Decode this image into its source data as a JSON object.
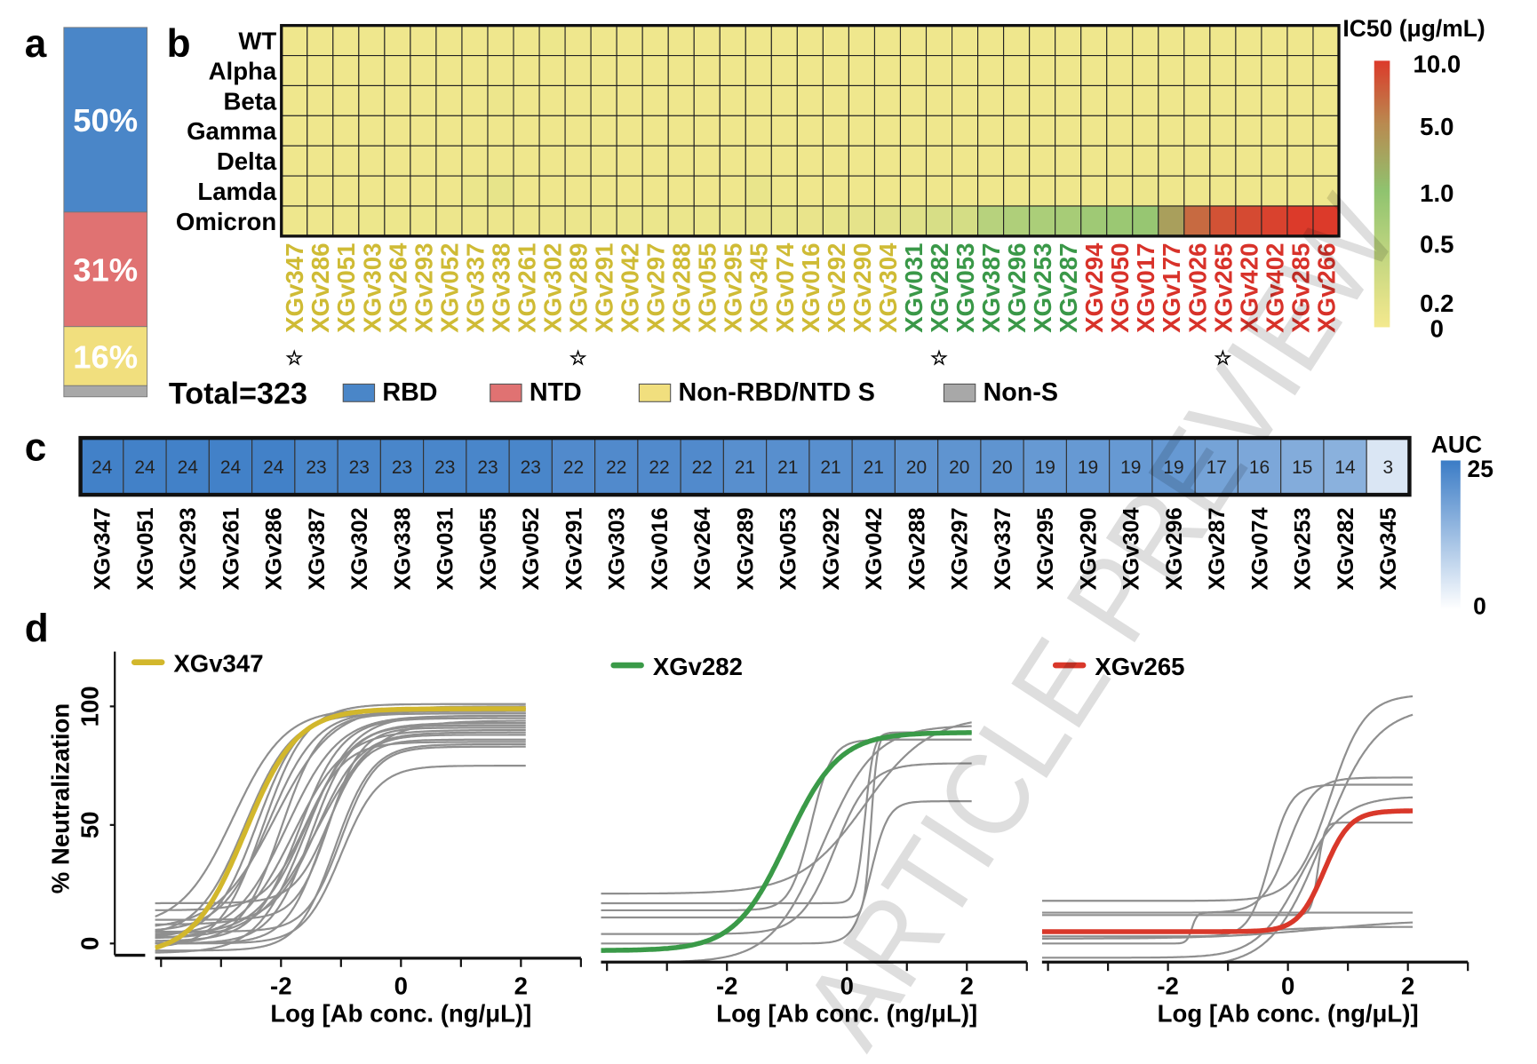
{
  "panel_letters": {
    "a": "a",
    "b": "b",
    "c": "c",
    "d": "d"
  },
  "watermark": "ARTICLE PREVIEW",
  "chart_data": [
    {
      "panel": "a",
      "type": "bar",
      "stacked": true,
      "segments": [
        {
          "category": "RBD",
          "value": 50,
          "label": "50%",
          "color": "#4a86c8"
        },
        {
          "category": "NTD",
          "value": 31,
          "label": "31%",
          "color": "#e07272"
        },
        {
          "category": "Non-RBD/NTD S",
          "value": 16,
          "label": "16%",
          "color": "#f1df7e"
        },
        {
          "category": "Non-S",
          "value": 3,
          "label": "",
          "color": "#a8a8a8"
        }
      ],
      "total_label": "Total=323",
      "legend": [
        {
          "label": "RBD",
          "color": "#4a86c8"
        },
        {
          "label": "NTD",
          "color": "#e07272"
        },
        {
          "label": "Non-RBD/NTD S",
          "color": "#f1df7e"
        },
        {
          "label": "Non-S",
          "color": "#a8a8a8"
        }
      ]
    },
    {
      "panel": "b",
      "type": "heatmap",
      "rows": [
        "WT",
        "Alpha",
        "Beta",
        "Gamma",
        "Delta",
        "Lamda",
        "Omicron"
      ],
      "column_groups": [
        {
          "color": "#cfbb35",
          "columns": [
            "XGv347",
            "XGv286",
            "XGv051",
            "XGv303",
            "XGv264",
            "XGv293",
            "XGv052",
            "XGv337",
            "XGv338",
            "XGv261",
            "XGv302",
            "XGv289",
            "XGv291",
            "XGv042",
            "XGv297",
            "XGv288",
            "XGv055",
            "XGv295",
            "XGv345",
            "XGv074",
            "XGv016",
            "XGv292",
            "XGv290",
            "XGv304"
          ]
        },
        {
          "color": "#3a9848",
          "columns": [
            "XGv031",
            "XGv282",
            "XGv053",
            "XGv387",
            "XGv296",
            "XGv253",
            "XGv287"
          ]
        },
        {
          "color": "#d8322a",
          "columns": [
            "XGv294",
            "XGv050",
            "XGv017",
            "XGv177",
            "XGv026",
            "XGv265",
            "XGv420",
            "XGv402",
            "XGv285",
            "XGv266"
          ]
        }
      ],
      "starred_columns": [
        "XGv347",
        "XGv289",
        "XGv282",
        "XGv265"
      ],
      "star_glyph": "☆",
      "values": [
        [
          0.05,
          0.05,
          0.05,
          0.05,
          0.05,
          0.05,
          0.05,
          0.05,
          0.05,
          0.05,
          0.07,
          0.05,
          0.05,
          0.05,
          0.05,
          0.05,
          0.05,
          0.05,
          0.05,
          0.05,
          0.05,
          0.05,
          0.05,
          0.05,
          0.05,
          0.05,
          0.05,
          0.05,
          0.05,
          0.05,
          0.05,
          0.05,
          0.05,
          0.05,
          0.05,
          0.05,
          0.05,
          0.05,
          0.05,
          0.05,
          0.05
        ],
        [
          0.05,
          0.05,
          0.05,
          0.05,
          0.05,
          0.05,
          0.05,
          0.05,
          0.05,
          0.05,
          0.05,
          0.05,
          0.05,
          0.05,
          0.05,
          0.05,
          0.05,
          0.05,
          0.05,
          0.05,
          0.05,
          0.05,
          0.05,
          0.05,
          0.05,
          0.05,
          0.05,
          0.05,
          0.05,
          0.05,
          0.05,
          0.05,
          0.05,
          0.05,
          0.05,
          0.05,
          0.05,
          0.05,
          0.05,
          0.05,
          0.05
        ],
        [
          0.05,
          0.05,
          0.05,
          0.05,
          0.05,
          0.05,
          0.05,
          0.05,
          0.08,
          0.05,
          0.05,
          0.05,
          0.05,
          0.05,
          0.05,
          0.05,
          0.05,
          0.05,
          0.05,
          0.05,
          0.05,
          0.05,
          0.05,
          0.05,
          0.05,
          0.05,
          0.05,
          0.05,
          0.05,
          0.05,
          0.05,
          0.05,
          0.05,
          0.05,
          0.05,
          0.05,
          0.05,
          0.05,
          0.05,
          0.05,
          0.05
        ],
        [
          0.05,
          0.05,
          0.05,
          0.05,
          0.05,
          0.05,
          0.05,
          0.05,
          0.05,
          0.05,
          0.05,
          0.05,
          0.05,
          0.05,
          0.05,
          0.05,
          0.05,
          0.05,
          0.05,
          0.05,
          0.05,
          0.05,
          0.05,
          0.05,
          0.05,
          0.05,
          0.05,
          0.05,
          0.05,
          0.05,
          0.05,
          0.05,
          0.05,
          0.05,
          0.05,
          0.05,
          0.05,
          0.05,
          0.05,
          0.05,
          0.05
        ],
        [
          0.05,
          0.05,
          0.05,
          0.05,
          0.05,
          0.05,
          0.05,
          0.05,
          0.05,
          0.05,
          0.05,
          0.05,
          0.05,
          0.05,
          0.05,
          0.05,
          0.05,
          0.05,
          0.05,
          0.05,
          0.05,
          0.05,
          0.05,
          0.05,
          0.05,
          0.05,
          0.05,
          0.05,
          0.05,
          0.05,
          0.05,
          0.05,
          0.05,
          0.05,
          0.05,
          0.05,
          0.05,
          0.05,
          0.05,
          0.05,
          0.05
        ],
        [
          0.05,
          0.05,
          0.05,
          0.05,
          0.05,
          0.05,
          0.05,
          0.1,
          0.15,
          0.05,
          0.05,
          0.05,
          0.05,
          0.05,
          0.05,
          0.05,
          0.05,
          0.05,
          0.12,
          0.06,
          0.05,
          0.05,
          0.05,
          0.05,
          0.05,
          0.05,
          0.05,
          0.05,
          0.05,
          0.05,
          0.05,
          0.05,
          0.05,
          0.08,
          0.05,
          0.05,
          0.05,
          0.05,
          0.05,
          0.05,
          0.05
        ],
        [
          0.06,
          0.06,
          0.06,
          0.07,
          0.07,
          0.07,
          0.08,
          0.08,
          0.08,
          0.08,
          0.08,
          0.09,
          0.09,
          0.1,
          0.1,
          0.1,
          0.1,
          0.1,
          0.11,
          0.12,
          0.13,
          0.15,
          0.18,
          0.2,
          0.22,
          0.28,
          0.3,
          0.5,
          0.6,
          0.65,
          0.7,
          0.8,
          0.85,
          0.9,
          3.5,
          7.0,
          8.5,
          9.0,
          9.5,
          10.0,
          10.0
        ]
      ],
      "colorbar": {
        "title": "IC50 (μg/mL)",
        "ticks": [
          "10.0",
          "5.0",
          "1.0",
          "0.5",
          "0.2",
          "0"
        ],
        "stops": [
          {
            "value": 0,
            "color": "#f3e98e"
          },
          {
            "value": 0.2,
            "color": "#e3e289"
          },
          {
            "value": 0.5,
            "color": "#b7d27d"
          },
          {
            "value": 1.0,
            "color": "#8fc36f"
          },
          {
            "value": 5.0,
            "color": "#b98a50"
          },
          {
            "value": 10.0,
            "color": "#dc3a2a"
          }
        ]
      }
    },
    {
      "panel": "c",
      "type": "heatmap",
      "categories": [
        "XGv347",
        "XGv051",
        "XGv293",
        "XGv261",
        "XGv286",
        "XGv387",
        "XGv302",
        "XGv338",
        "XGv031",
        "XGv055",
        "XGv052",
        "XGv291",
        "XGv303",
        "XGv016",
        "XGv264",
        "XGv289",
        "XGv053",
        "XGv292",
        "XGv042",
        "XGv288",
        "XGv297",
        "XGv337",
        "XGv295",
        "XGv290",
        "XGv304",
        "XGv296",
        "XGv287",
        "XGv074",
        "XGv253",
        "XGv282",
        "XGv345"
      ],
      "values": [
        24,
        24,
        24,
        24,
        24,
        23,
        23,
        23,
        23,
        23,
        23,
        22,
        22,
        22,
        22,
        21,
        21,
        21,
        21,
        20,
        20,
        20,
        19,
        19,
        19,
        19,
        17,
        16,
        15,
        14,
        3
      ],
      "colorbar": {
        "title": "AUC",
        "max_label": "25",
        "min_label": "0",
        "range": [
          0,
          25
        ],
        "color_low": "#ffffff",
        "color_high": "#3b7cc6"
      }
    },
    {
      "panel": "d",
      "type": "line",
      "ylabel": "% Neutralization",
      "xlabel": "Log [Ab conc. (ng/μL)]",
      "xticks": [
        "-2",
        "0",
        "2"
      ],
      "yticks": [
        "0",
        "50",
        "100"
      ],
      "ylim": [
        -8,
        125
      ],
      "xlim": [
        -4.1,
        3
      ],
      "model": "bottom + (top - bottom) / (1 + 10^((logIC50 - x) * hill))",
      "curve_color_other": "#8f8f8f",
      "subplots": [
        {
          "name": "XGv347",
          "color": "#d2b72c",
          "highlight": {
            "bottom": -5,
            "top": 99,
            "logIC50": -2.6,
            "hill": 1.0
          },
          "others": [
            [
              2,
              99,
              -2.4,
              1.2
            ],
            [
              5,
              98,
              -2.2,
              1.1
            ],
            [
              0,
              97,
              -2.0,
              1.3
            ],
            [
              3,
              96,
              -1.9,
              1.0
            ],
            [
              6,
              100,
              -2.1,
              0.9
            ],
            [
              1,
              95,
              -1.7,
              1.2
            ],
            [
              4,
              93,
              -1.6,
              1.1
            ],
            [
              0,
              92,
              -1.5,
              1.3
            ],
            [
              2,
              90,
              -1.8,
              1.0
            ],
            [
              8,
              89,
              -1.4,
              1.2
            ],
            [
              0,
              88,
              -1.3,
              1.4
            ],
            [
              17,
              86,
              -1.2,
              1.5
            ],
            [
              14,
              85,
              -1.6,
              1.3
            ],
            [
              -3,
              84,
              -1.1,
              1.4
            ],
            [
              5,
              83,
              -1.0,
              1.5
            ],
            [
              0,
              75,
              -1.0,
              1.4
            ],
            [
              3,
              97,
              -2.6,
              1.1
            ],
            [
              7,
              99,
              -2.8,
              1.0
            ],
            [
              -2,
              101,
              -2.3,
              1.2
            ],
            [
              2,
              94,
              -1.4,
              0.9
            ],
            [
              10,
              91,
              -1.2,
              1.6
            ],
            [
              -4,
              96,
              -1.6,
              1.1
            ]
          ]
        },
        {
          "name": "XGv282",
          "color": "#3a9a48",
          "highlight": {
            "bottom": -3,
            "top": 89,
            "logIC50": -1.0,
            "hill": 1.0
          },
          "others": [
            [
              21,
              96,
              0.3,
              0.8
            ],
            [
              17,
              89,
              0.3,
              6
            ],
            [
              14,
              86,
              -0.6,
              2.5
            ],
            [
              11,
              89,
              0.4,
              8
            ],
            [
              4,
              76,
              -0.2,
              1.5
            ],
            [
              0,
              60,
              0.4,
              3
            ],
            [
              -8,
              92,
              -0.4,
              1.0
            ]
          ]
        },
        {
          "name": "XGv265",
          "color": "#d9382a",
          "highlight": {
            "bottom": 5,
            "top": 56,
            "logIC50": 0.6,
            "hill": 2.0
          },
          "others": [
            [
              18,
              105,
              0.7,
              1.5
            ],
            [
              13,
              70,
              0.0,
              2
            ],
            [
              3,
              67,
              -0.3,
              2.5
            ],
            [
              12,
              51,
              0.5,
              8
            ],
            [
              0,
              13,
              -1.6,
              10
            ],
            [
              2,
              10,
              0.5,
              0.5
            ],
            [
              5,
              7,
              0,
              1
            ],
            [
              -6,
              62,
              0.2,
              1.2
            ],
            [
              -10,
              100,
              0.6,
              1.0
            ]
          ]
        }
      ]
    }
  ]
}
